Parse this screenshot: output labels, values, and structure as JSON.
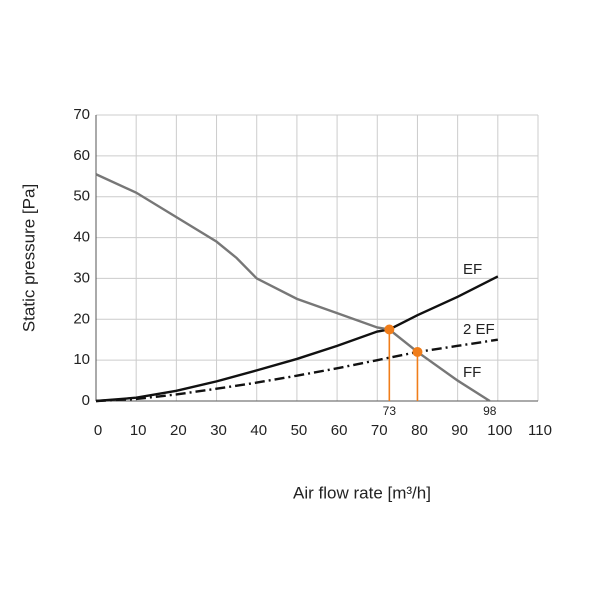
{
  "chart_data": {
    "type": "line",
    "x_label": "Air flow rate  [m³/h]",
    "y_label": "Static pressure  [Pa]",
    "xlim": [
      0,
      110
    ],
    "xticks": [
      0,
      10,
      20,
      30,
      40,
      50,
      60,
      70,
      80,
      90,
      100,
      110
    ],
    "ylim": [
      0,
      70
    ],
    "yticks": [
      0,
      10,
      20,
      30,
      40,
      50,
      60,
      70
    ],
    "grid": true,
    "series": [
      {
        "name": "EF",
        "color": "#111111",
        "dash": "solid",
        "x": [
          0,
          10,
          20,
          30,
          40,
          50,
          60,
          70,
          73,
          80,
          90,
          100
        ],
        "values": [
          0,
          0.8,
          2.5,
          4.8,
          7.5,
          10.3,
          13.5,
          17,
          17.5,
          21,
          25.5,
          30.5
        ]
      },
      {
        "name": "2 EF",
        "color": "#111111",
        "dash": "dashdot",
        "x": [
          0,
          10,
          20,
          30,
          40,
          50,
          60,
          70,
          80,
          90,
          100
        ],
        "values": [
          0,
          0.5,
          1.6,
          3,
          4.5,
          6.2,
          8,
          10,
          12,
          13.5,
          15
        ]
      },
      {
        "name": "FF",
        "color": "#777777",
        "dash": "solid",
        "x": [
          0,
          10,
          20,
          30,
          35,
          40,
          50,
          60,
          70,
          73,
          80,
          90,
          98
        ],
        "values": [
          55.5,
          51,
          45,
          39,
          35,
          30,
          25,
          21.5,
          18,
          17.5,
          12,
          5,
          0
        ]
      }
    ],
    "operating_points": {
      "color": "#f07d1a",
      "x": [
        73,
        80
      ],
      "values": [
        17.5,
        12
      ]
    },
    "x_annotations": [
      73,
      98
    ]
  }
}
